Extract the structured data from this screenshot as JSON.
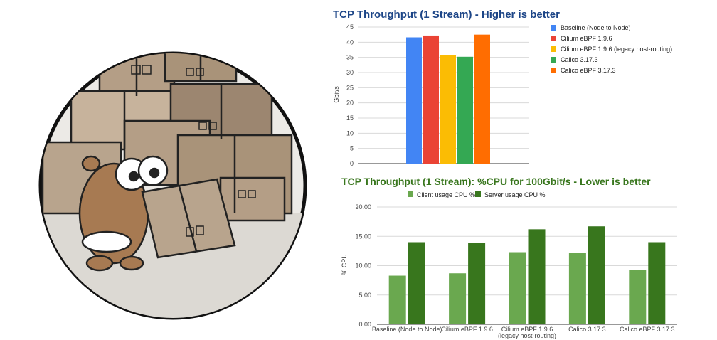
{
  "chart_data": [
    {
      "type": "bar",
      "title": "TCP Throughput (1 Stream) - Higher is better",
      "ylabel": "Gbit/s",
      "ylim": [
        0,
        45
      ],
      "yticks": [
        "0",
        "5",
        "10",
        "15",
        "20",
        "25",
        "30",
        "35",
        "40",
        "45"
      ],
      "grid": true,
      "legend_position": "right",
      "series": [
        {
          "name": "Baseline (Node to Node)",
          "values": [
            41.6
          ],
          "color": "#4285f4"
        },
        {
          "name": "Cilium eBPF 1.9.6",
          "values": [
            42.2
          ],
          "color": "#ea4335"
        },
        {
          "name": "Cilium eBPF 1.9.6 (legacy host-routing)",
          "values": [
            35.8
          ],
          "color": "#fbbc04"
        },
        {
          "name": "Calico 3.17.3",
          "values": [
            35.2
          ],
          "color": "#34a853"
        },
        {
          "name": "Calico eBPF 3.17.3",
          "values": [
            42.5
          ],
          "color": "#ff6d01"
        }
      ]
    },
    {
      "type": "bar",
      "title": "TCP Throughput (1 Stream): %CPU for 100Gbit/s - Lower is better",
      "ylabel": "% CPU",
      "ylim": [
        0,
        20
      ],
      "yticks": [
        "0.00",
        "5.00",
        "10.00",
        "15.00",
        "20.00"
      ],
      "grid": true,
      "legend_position": "top",
      "categories": [
        [
          "Baseline (Node to Node)"
        ],
        [
          "Cilium eBPF 1.9.6"
        ],
        [
          "Cilium eBPF 1.9.6",
          "(legacy host-routing)"
        ],
        [
          "Calico 3.17.3"
        ],
        [
          "Calico eBPF 3.17.3"
        ]
      ],
      "series": [
        {
          "name": "Client usage CPU %",
          "values": [
            8.3,
            8.7,
            12.3,
            12.2,
            9.3
          ],
          "color": "#6aa84f"
        },
        {
          "name": "Server usage CPU %",
          "values": [
            14.0,
            13.9,
            16.2,
            16.7,
            14.0
          ],
          "color": "#38761d"
        }
      ]
    }
  ],
  "colors": {
    "title1": "#1c4587",
    "title2": "#38761d",
    "circle_bg": "#eceae6",
    "box": "#b49e86",
    "box_dark": "#9c8670",
    "gopher": "#a77a52"
  }
}
